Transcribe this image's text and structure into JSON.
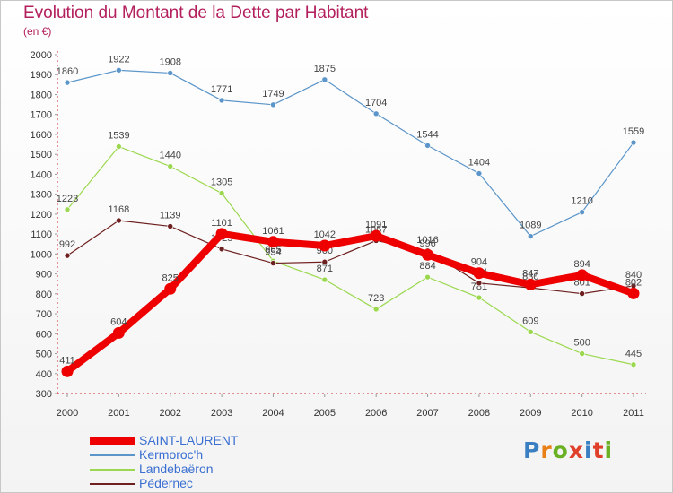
{
  "title": "Evolution du Montant de la Dette par Habitant",
  "subtitle": "(en €)",
  "logo": {
    "text": "Proxiti",
    "colors": [
      "#3a7fc1",
      "#e87f17",
      "#6ab023",
      "#e0402a",
      "#3a7fc1",
      "#e0402a",
      "#6ab023"
    ]
  },
  "chart_data": {
    "type": "line",
    "title": "Evolution du Montant de la Dette par Habitant",
    "subtitle": "(en €)",
    "x": [
      "2000",
      "2001",
      "2002",
      "2003",
      "2004",
      "2005",
      "2006",
      "2007",
      "2008",
      "2009",
      "2010",
      "2011"
    ],
    "ylim": [
      300,
      2000
    ],
    "yticks": [
      300,
      400,
      500,
      600,
      700,
      800,
      900,
      1000,
      1100,
      1200,
      1300,
      1400,
      1500,
      1600,
      1700,
      1800,
      1900,
      2000
    ],
    "grid": false,
    "legend_position": "bottom-left",
    "series": [
      {
        "name": "Kermoroc'h",
        "color": "#5b95c9",
        "values": [
          1860,
          1922,
          1908,
          1771,
          1749,
          1875,
          1704,
          1544,
          1404,
          1089,
          1210,
          1559
        ]
      },
      {
        "name": "Landebaëron",
        "color": "#9bd84f",
        "values": [
          1223,
          1539,
          1440,
          1305,
          965,
          871,
          723,
          884,
          781,
          609,
          500,
          445
        ]
      },
      {
        "name": "Pédernec",
        "color": "#6e1f1f",
        "values": [
          992,
          1168,
          1139,
          1025,
          954,
          960,
          1067,
          1016,
          854,
          830,
          801,
          840
        ]
      },
      {
        "name": "SAINT-LAURENT",
        "color": "#ee0000",
        "values": [
          411,
          604,
          825,
          1101,
          1061,
          1042,
          1091,
          996,
          904,
          847,
          894,
          802
        ]
      }
    ]
  }
}
